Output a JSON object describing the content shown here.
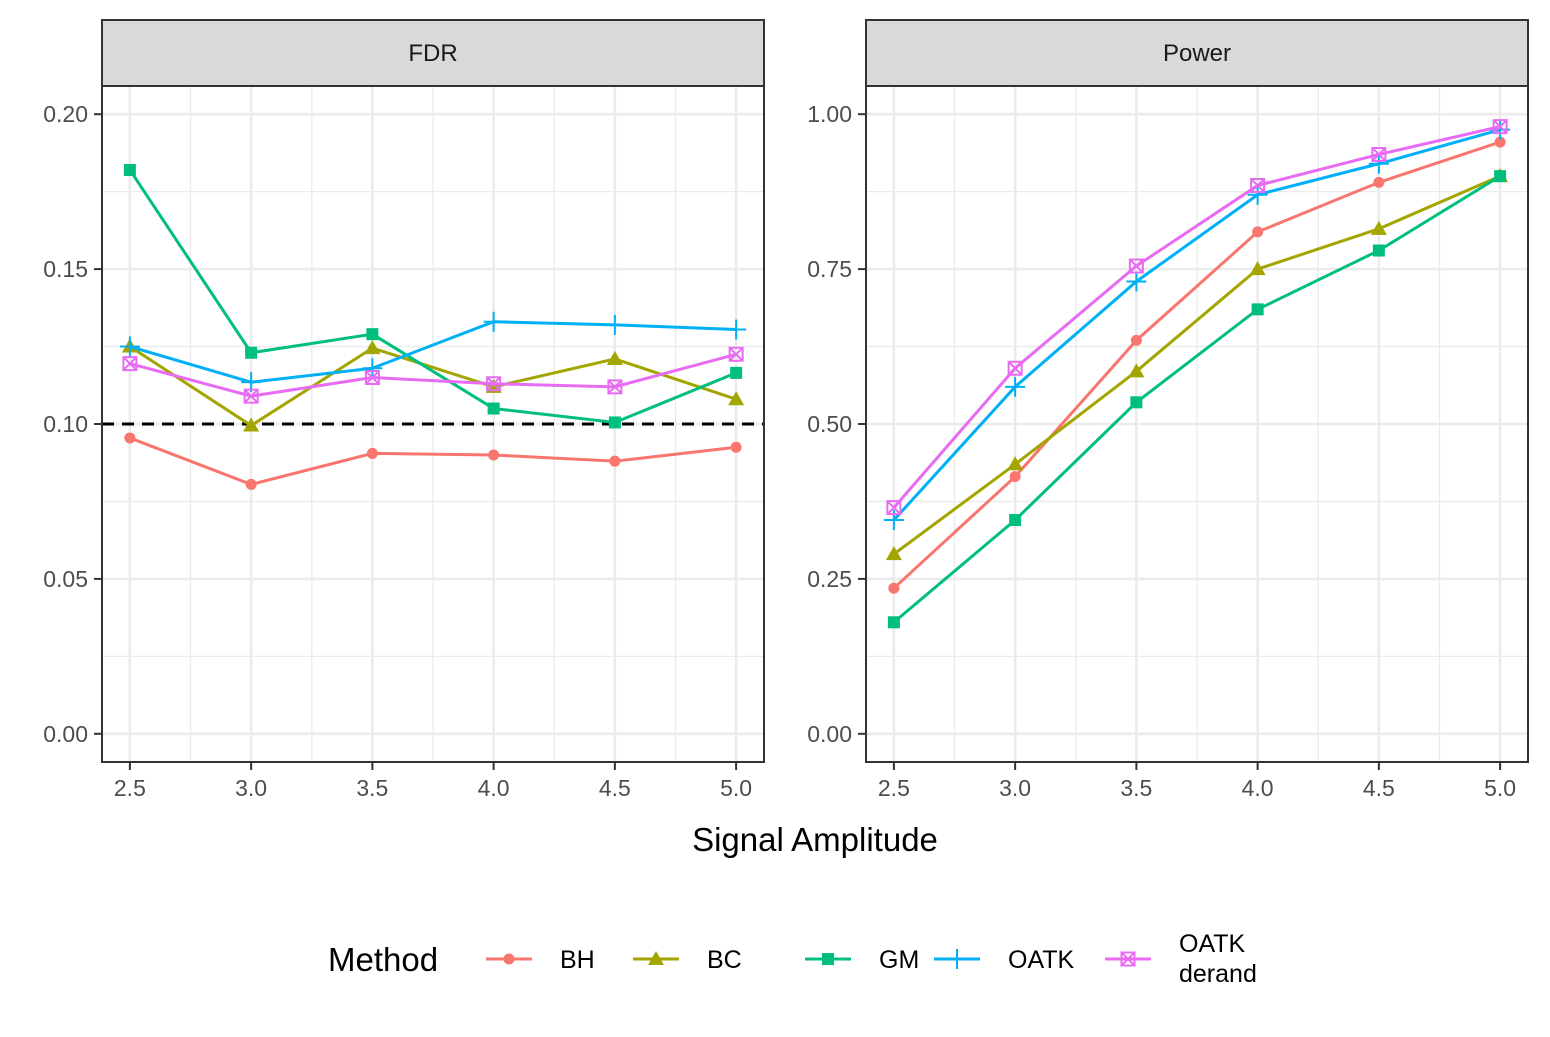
{
  "legend": {
    "title": "Method",
    "entries": [
      {
        "key": "BH",
        "label": "BH",
        "color": "#F8766D",
        "shape": "circle"
      },
      {
        "key": "BC",
        "label": "BC",
        "color": "#A3A500",
        "shape": "triangle"
      },
      {
        "key": "GM",
        "label": "GM",
        "color": "#00BF7D",
        "shape": "square"
      },
      {
        "key": "OATK",
        "label": "OATK",
        "color": "#00B0F6",
        "shape": "plus"
      },
      {
        "key": "OATK_derand",
        "label": "OATK\nderand",
        "label_lines": [
          "OATK",
          "derand"
        ],
        "color": "#E76BF3",
        "shape": "boxed-x"
      }
    ]
  },
  "xlabel": "Signal Amplitude",
  "chart_data": [
    {
      "type": "line",
      "title": "FDR",
      "xlabel": "Signal Amplitude",
      "ylabel": "",
      "x": [
        2.5,
        3.0,
        3.5,
        4.0,
        4.5,
        5.0
      ],
      "x_tick_labels": [
        "2.5",
        "3.0",
        "3.5",
        "4.0",
        "4.5",
        "5.0"
      ],
      "xlim": [
        2.385,
        5.115
      ],
      "ylim": [
        -0.0091,
        0.2091
      ],
      "y_ticks": [
        0.0,
        0.05,
        0.1,
        0.15,
        0.2
      ],
      "y_tick_labels": [
        "0.00",
        "0.05",
        "0.10",
        "0.15",
        "0.20"
      ],
      "reference_line": {
        "y": 0.1,
        "style": "dashed",
        "color": "#000000"
      },
      "series": [
        {
          "name": "BH",
          "values": [
            0.0955,
            0.0805,
            0.0905,
            0.09,
            0.088,
            0.0925
          ]
        },
        {
          "name": "BC",
          "values": [
            0.125,
            0.0995,
            0.1245,
            0.112,
            0.121,
            0.108
          ]
        },
        {
          "name": "GM",
          "values": [
            0.182,
            0.123,
            0.129,
            0.105,
            0.1005,
            0.1165
          ]
        },
        {
          "name": "OATK",
          "values": [
            0.125,
            0.1135,
            0.118,
            0.133,
            0.132,
            0.1305
          ]
        },
        {
          "name": "OATK derand",
          "values": [
            0.1195,
            0.109,
            0.115,
            0.113,
            0.112,
            0.1225
          ]
        }
      ]
    },
    {
      "type": "line",
      "title": "Power",
      "xlabel": "Signal Amplitude",
      "ylabel": "",
      "x": [
        2.5,
        3.0,
        3.5,
        4.0,
        4.5,
        5.0
      ],
      "x_tick_labels": [
        "2.5",
        "3.0",
        "3.5",
        "4.0",
        "4.5",
        "5.0"
      ],
      "xlim": [
        2.385,
        5.115
      ],
      "ylim": [
        -0.0455,
        1.0455
      ],
      "y_ticks": [
        0.0,
        0.25,
        0.5,
        0.75,
        1.0
      ],
      "y_tick_labels": [
        "0.00",
        "0.25",
        "0.50",
        "0.75",
        "1.00"
      ],
      "series": [
        {
          "name": "BH",
          "values": [
            0.235,
            0.415,
            0.635,
            0.81,
            0.89,
            0.955
          ]
        },
        {
          "name": "BC",
          "values": [
            0.29,
            0.435,
            0.585,
            0.75,
            0.815,
            0.9
          ]
        },
        {
          "name": "GM",
          "values": [
            0.18,
            0.345,
            0.535,
            0.685,
            0.78,
            0.9
          ]
        },
        {
          "name": "OATK",
          "values": [
            0.345,
            0.56,
            0.73,
            0.87,
            0.92,
            0.975
          ]
        },
        {
          "name": "OATK derand",
          "values": [
            0.365,
            0.59,
            0.755,
            0.885,
            0.935,
            0.98
          ]
        }
      ]
    }
  ]
}
